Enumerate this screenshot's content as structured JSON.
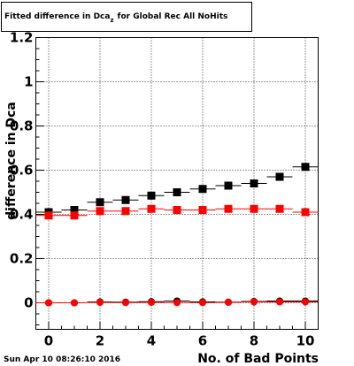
{
  "title_box": {
    "main": "Fitted difference in Dca",
    "subscript": "z",
    "suffix": "for Global Rec All NoHits"
  },
  "timestamp": "Sun Apr 10 08:26:10 2016",
  "chart_data": {
    "type": "scatter",
    "title": "Fitted difference in Dca_z for Global Rec All NoHits",
    "xlabel": "No. of Bad Points",
    "ylabel": "difference in Dca",
    "xlim": [
      -0.5,
      10.5
    ],
    "ylim": [
      -0.12,
      1.2
    ],
    "xticks": [
      0,
      2,
      4,
      6,
      8,
      10
    ],
    "yticks": [
      0,
      0.2,
      0.4,
      0.6,
      0.8,
      1,
      1.2
    ],
    "ytick_labels": [
      "0",
      "0.2",
      "0.4",
      "0.6",
      "0.8",
      "1",
      "1.2"
    ],
    "grid": true,
    "x": [
      0,
      1,
      2,
      3,
      4,
      5,
      6,
      7,
      8,
      9,
      10
    ],
    "series": [
      {
        "marker": "square",
        "color": "#000000",
        "values": [
          0.41,
          0.42,
          0.455,
          0.465,
          0.485,
          0.5,
          0.515,
          0.53,
          0.54,
          0.57,
          0.615
        ]
      },
      {
        "marker": "square",
        "color": "#ff0000",
        "values": [
          0.395,
          0.395,
          0.415,
          0.415,
          0.425,
          0.42,
          0.42,
          0.425,
          0.425,
          0.425,
          0.41
        ]
      },
      {
        "marker": "circle",
        "color": "#000000",
        "values": [
          0.0,
          0.0,
          0.004,
          0.003,
          0.005,
          0.008,
          0.004,
          0.003,
          0.006,
          0.008,
          0.008
        ]
      },
      {
        "marker": "circle",
        "color": "#ff0000",
        "values": [
          0.0,
          0.0,
          0.002,
          0.001,
          0.002,
          0.001,
          0.001,
          0.002,
          0.004,
          0.004,
          0.004
        ]
      }
    ]
  }
}
